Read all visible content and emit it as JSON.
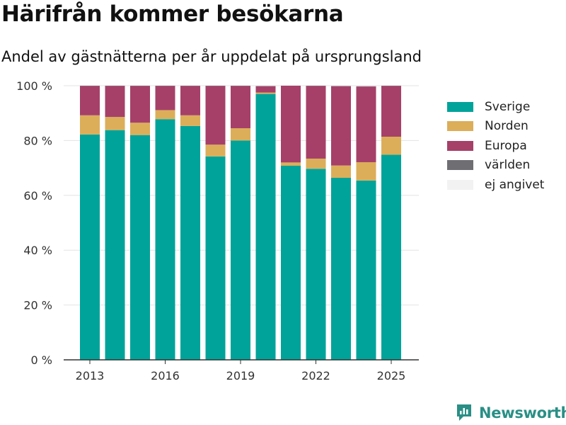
{
  "header": {
    "title": "Härifrån kommer besökarna",
    "subtitle": "Andel av gästnätterna per år uppdelat på ursprungsland"
  },
  "branding": {
    "name": "Newsworthy",
    "color": "#2a8f86"
  },
  "chart_data": {
    "type": "bar",
    "stacked": true,
    "categories": [
      "2013",
      "2014",
      "2015",
      "2016",
      "2017",
      "2018",
      "2019",
      "2020",
      "2021",
      "2022",
      "2023",
      "2024",
      "2025"
    ],
    "x_tick_labels": [
      "2013",
      "2016",
      "2019",
      "2022",
      "2025"
    ],
    "y_tick_labels": [
      "0 %",
      "20 %",
      "40 %",
      "60 %",
      "80 %",
      "100 %"
    ],
    "ylim": [
      0,
      100
    ],
    "grid": true,
    "legend_position": "right",
    "series": [
      {
        "name": "Sverige",
        "color": "#00a39a",
        "values": [
          82.2,
          83.8,
          82.0,
          87.8,
          85.3,
          74.2,
          80.0,
          97.0,
          70.8,
          69.7,
          66.4,
          65.4,
          74.8
        ]
      },
      {
        "name": "Norden",
        "color": "#dcae5a",
        "values": [
          7.0,
          4.8,
          4.5,
          3.3,
          3.9,
          4.3,
          4.5,
          0.5,
          1.2,
          3.7,
          4.5,
          6.7,
          6.6
        ]
      },
      {
        "name": "Europa",
        "color": "#a64069",
        "values": [
          10.7,
          11.3,
          13.4,
          8.8,
          10.7,
          21.4,
          15.4,
          2.3,
          28.0,
          26.5,
          28.9,
          27.6,
          18.5
        ]
      },
      {
        "name": "världen",
        "color": "#6e6e73",
        "values": [
          0.1,
          0.1,
          0.1,
          0.1,
          0.1,
          0.1,
          0.1,
          0.1,
          0.0,
          0.1,
          0.1,
          0.1,
          0.1
        ]
      },
      {
        "name": "ej angivet",
        "color": "#f2f2f2",
        "values": [
          0,
          0,
          0,
          0,
          0,
          0,
          0,
          0,
          0,
          0,
          0,
          0,
          0
        ]
      }
    ]
  }
}
